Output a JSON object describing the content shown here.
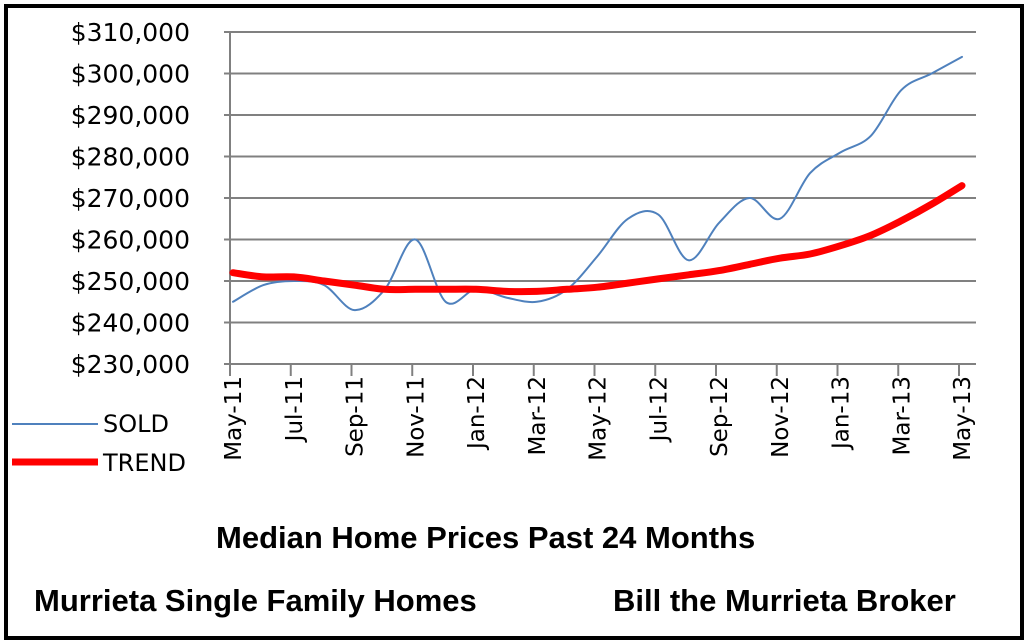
{
  "chart_data": {
    "type": "line",
    "title": "Median Home Prices Past 24  Months",
    "caption_left": "Murrieta Single Family Homes",
    "caption_right": "Bill the Murrieta Broker",
    "x": [
      "May-11",
      "Jun-11",
      "Jul-11",
      "Aug-11",
      "Sep-11",
      "Oct-11",
      "Nov-11",
      "Dec-11",
      "Jan-12",
      "Feb-12",
      "Mar-12",
      "Apr-12",
      "May-12",
      "Jun-12",
      "Jul-12",
      "Aug-12",
      "Sep-12",
      "Oct-12",
      "Nov-12",
      "Dec-12",
      "Jan-13",
      "Feb-13",
      "Mar-13",
      "Apr-13",
      "May-13"
    ],
    "x_tick_labels": [
      "May-11",
      "Jul-11",
      "Sep-11",
      "Nov-11",
      "Jan-12",
      "Mar-12",
      "May-12",
      "Jul-12",
      "Sep-12",
      "Nov-12",
      "Jan-13",
      "Mar-13",
      "May-13"
    ],
    "y_tick_labels": [
      "$310,000",
      "$300,000",
      "$290,000",
      "$280,000",
      "$270,000",
      "$260,000",
      "$250,000",
      "$240,000",
      "$230,000"
    ],
    "ylim": [
      230000,
      310000
    ],
    "y_tick_step": 10000,
    "grid": true,
    "legend_placement": "bottom-left",
    "series": [
      {
        "name": "SOLD",
        "color": "#4f81bd",
        "values": [
          245000,
          249000,
          250000,
          249000,
          243000,
          248000,
          260000,
          245000,
          248000,
          246000,
          245000,
          248000,
          256000,
          265000,
          266000,
          255000,
          264000,
          270000,
          265000,
          276000,
          281000,
          285000,
          296000,
          300000,
          304000
        ]
      },
      {
        "name": "TREND",
        "color": "#ff0000",
        "values": [
          252000,
          251000,
          251000,
          250000,
          249000,
          248000,
          248000,
          248000,
          248000,
          247500,
          247500,
          248000,
          248500,
          249500,
          250500,
          251500,
          252500,
          254000,
          255500,
          256500,
          258500,
          261000,
          264500,
          268500,
          273000
        ]
      }
    ]
  }
}
